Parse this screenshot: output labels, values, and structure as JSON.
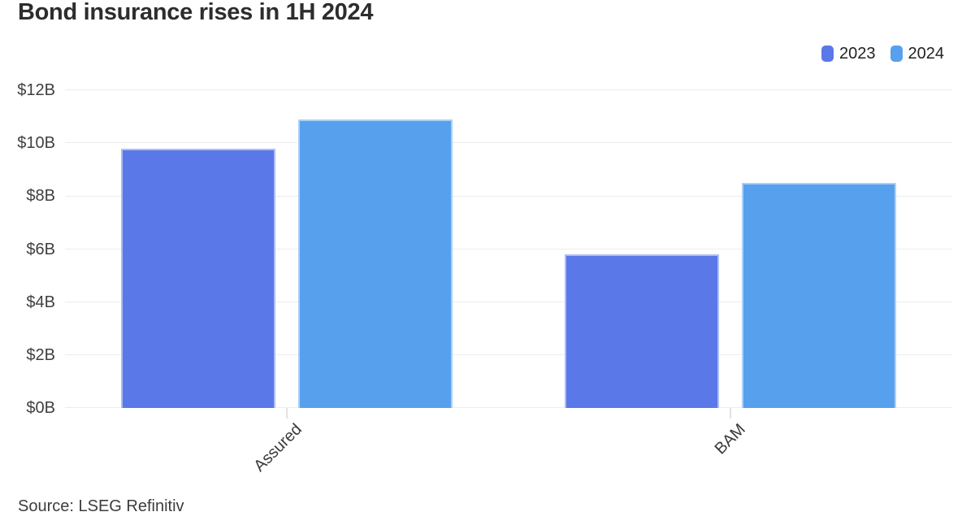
{
  "page": {
    "title": "Bond insurance rises in 1H 2024",
    "source": "Source: LSEG Refinitiv"
  },
  "legend": {
    "position": "top-right",
    "items": [
      {
        "label": "2023",
        "color": "#5b78e8"
      },
      {
        "label": "2024",
        "color": "#57a0ee"
      }
    ]
  },
  "colors": {
    "series_2023": "#5b78e8",
    "series_2024": "#57a0ee",
    "gridline": "#ececec",
    "axis_text": "#3f3f3f",
    "title_text": "#2d2d2d",
    "background": "#ffffff"
  },
  "chart_data": {
    "type": "bar",
    "title": "Bond insurance rises in 1H 2024",
    "categories": [
      "Assured",
      "BAM"
    ],
    "series": [
      {
        "name": "2023",
        "color": "#5b78e8",
        "values": [
          9.8,
          5.8
        ]
      },
      {
        "name": "2024",
        "color": "#57a0ee",
        "values": [
          10.9,
          8.5
        ]
      }
    ],
    "xlabel": "",
    "ylabel": "",
    "ylim": [
      0,
      12
    ],
    "ytick_values": [
      0,
      2,
      4,
      6,
      8,
      10,
      12
    ],
    "ytick_labels": [
      "$0B",
      "$2B",
      "$4B",
      "$6B",
      "$8B",
      "$10B",
      "$12B"
    ],
    "grid": true,
    "legend_position": "top-right",
    "source": "Source: LSEG Refinitiv"
  }
}
